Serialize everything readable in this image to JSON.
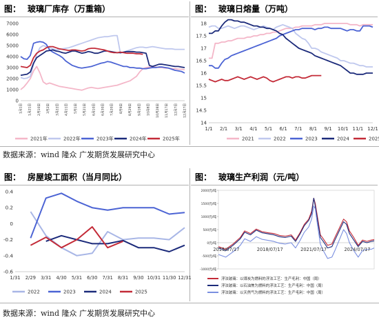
{
  "sources": {
    "top": "数据来源：wind 隆众 广发期货发展研究中心",
    "bottom": "数据来源：wind 隆众 广发期货发展研究中心"
  },
  "chart_data": [
    {
      "id": "inventory",
      "type": "line",
      "tag": "图：",
      "title": "玻璃厂库存（万重箱）",
      "ylim": [
        0,
        7000
      ],
      "yticks": [
        0,
        1000,
        2000,
        3000,
        4000,
        5000,
        6000,
        7000
      ],
      "xticks": [
        "1月1日",
        "1月21日",
        "2月10日",
        "3月2日",
        "3月22日",
        "4月11日",
        "5月1日",
        "5月21日",
        "6月10日",
        "6月30日",
        "7月20日",
        "8月9日",
        "8月29日",
        "9月18日",
        "10月8日",
        "10月28日",
        "11月17日",
        "12月7日",
        "12月27日"
      ],
      "n": 52,
      "series": [
        {
          "name": "2021年",
          "color": "#f4b6c8",
          "values": [
            1000,
            1250,
            1600,
            2000,
            2700,
            3100,
            2500,
            1700,
            1500,
            1600,
            1500,
            1400,
            1300,
            1250,
            1200,
            1150,
            1100,
            1050,
            1000,
            950,
            1050,
            1150,
            1200,
            1150,
            1100,
            1150,
            1200,
            1250,
            1300,
            1350,
            1400,
            1500,
            1600,
            1700,
            1800,
            2000,
            2200,
            2600,
            2900,
            3000,
            3050,
            3100,
            3050,
            3000,
            3000,
            2950,
            2950,
            2900,
            2900,
            2850,
            2850,
            2800
          ]
        },
        {
          "name": "2022年",
          "color": "#bfc8ee",
          "values": [
            2100,
            2000,
            2050,
            2200,
            3300,
            4200,
            4800,
            5000,
            4900,
            4800,
            4700,
            4600,
            4650,
            4700,
            4750,
            4800,
            4900,
            5000,
            5100,
            5200,
            5300,
            5400,
            5500,
            5600,
            5700,
            5750,
            5800,
            5800,
            5850,
            5900,
            5900,
            4300,
            4400,
            4500,
            4600,
            4700,
            4800,
            4850,
            4850,
            4800,
            4850,
            4900,
            4850,
            4800,
            4750,
            4700,
            4700,
            4700,
            4650,
            4650,
            4650,
            4650
          ]
        },
        {
          "name": "2023年",
          "color": "#4b63d4",
          "values": [
            4000,
            3800,
            3750,
            4100,
            5200,
            5300,
            5350,
            5300,
            5100,
            4600,
            4400,
            4250,
            4100,
            3900,
            3600,
            3400,
            3200,
            3100,
            3000,
            2950,
            3000,
            3050,
            3100,
            3200,
            3300,
            3400,
            3450,
            3550,
            3500,
            3400,
            3300,
            3200,
            3100,
            3100,
            3000,
            3000,
            2950,
            2950,
            2900,
            2900,
            2950,
            3000,
            3000,
            3050,
            3050,
            3000,
            2950,
            2850,
            2750,
            2700,
            2650,
            2500
          ]
        },
        {
          "name": "2024年",
          "color": "#1b2a7a",
          "values": [
            2300,
            2350,
            2400,
            2600,
            3400,
            3900,
            4100,
            4300,
            4500,
            4550,
            4600,
            4500,
            4450,
            4350,
            4300,
            4400,
            4500,
            4500,
            4400,
            4300,
            4350,
            4450,
            4400,
            4300,
            4300,
            4400,
            4500,
            4500,
            4450,
            4400,
            4350,
            4350,
            4400,
            4450,
            4450,
            4450,
            4400,
            4400,
            4350,
            4300,
            3200,
            3100,
            3200,
            3300,
            3300,
            3250,
            3200,
            3150,
            3100,
            3100,
            3050,
            3000
          ]
        },
        {
          "name": "2025年",
          "color": "#c32a37",
          "values": [
            3100,
            3050,
            3000,
            3200,
            3900,
            4300,
            4500,
            4600,
            4800,
            4900,
            4900,
            4800,
            4700,
            4650,
            4600,
            4550,
            4600,
            4600,
            4550,
            4500,
            4550,
            4700,
            4750,
            4750,
            4700,
            4650,
            4600,
            4500,
            4400,
            4350,
            4350,
            4400,
            4350,
            4300,
            4300,
            4300,
            4250,
            4250,
            4200
          ]
        }
      ]
    },
    {
      "id": "melt",
      "type": "line",
      "tag": "图：",
      "title": "玻璃日熔量（万吨）",
      "ylim": [
        14,
        18
      ],
      "yticks": [
        14,
        14.5,
        15,
        15.5,
        16,
        16.5,
        17,
        17.5,
        18
      ],
      "xticks": [
        "1/1",
        "2/1",
        "3/1",
        "4/1",
        "5/1",
        "6/1",
        "7/1",
        "8/1",
        "9/1",
        "10/1",
        "11/1",
        "12/1"
      ],
      "n": 52,
      "series": [
        {
          "name": "2021",
          "color": "#f4b6c8",
          "values": [
            16.6,
            16.6,
            17.2,
            17.2,
            17.25,
            17.25,
            17.3,
            17.3,
            17.35,
            17.4,
            17.4,
            17.4,
            17.45,
            17.45,
            17.5,
            17.5,
            17.55,
            17.55,
            17.6,
            17.6,
            17.65,
            17.65,
            17.7,
            17.75,
            17.8,
            17.8,
            17.8,
            17.85,
            17.85,
            17.9,
            17.9,
            17.9,
            17.9,
            17.95,
            17.95,
            17.95,
            18.0,
            18.0,
            18.0,
            18.0,
            18.0,
            18.0,
            18.0,
            18.0,
            17.95,
            17.95,
            17.95,
            17.9,
            17.95,
            17.95,
            17.95,
            17.95
          ]
        },
        {
          "name": "2022",
          "color": "#bfc8ee",
          "values": [
            17.85,
            17.9,
            17.9,
            17.8,
            17.8,
            17.85,
            17.9,
            17.85,
            17.8,
            17.85,
            17.9,
            17.9,
            17.85,
            17.8,
            17.75,
            17.8,
            17.85,
            17.9,
            17.85,
            17.8,
            17.75,
            17.85,
            17.9,
            17.95,
            17.9,
            17.85,
            17.8,
            17.6,
            17.5,
            17.4,
            17.35,
            17.2,
            17.0,
            17.0,
            16.95,
            16.85,
            16.8,
            16.75,
            16.7,
            16.65,
            16.6,
            16.5,
            16.5,
            16.45,
            16.4,
            16.4,
            16.35,
            16.3,
            16.3,
            16.25,
            16.25,
            16.25
          ]
        },
        {
          "name": "2023",
          "color": "#4b63d4",
          "values": [
            16.3,
            16.3,
            16.2,
            16.2,
            16.4,
            16.55,
            16.6,
            16.7,
            16.75,
            16.8,
            16.85,
            16.9,
            16.95,
            17.0,
            17.05,
            17.1,
            17.15,
            17.2,
            17.25,
            17.3,
            17.35,
            17.4,
            17.5,
            17.55,
            17.6,
            17.65,
            17.7,
            17.75,
            17.75,
            17.8,
            17.8,
            17.8,
            17.8,
            17.75,
            17.8,
            17.8,
            17.85,
            17.85,
            17.8,
            17.8,
            17.8,
            17.8,
            17.75,
            17.7,
            17.75,
            17.75,
            17.7,
            17.7,
            17.9,
            17.9,
            17.9,
            17.85
          ]
        },
        {
          "name": "2024",
          "color": "#1b2a7a",
          "values": [
            17.6,
            17.6,
            17.7,
            17.7,
            17.9,
            18.05,
            18.15,
            18.15,
            18.1,
            18.1,
            18.05,
            18.05,
            18.0,
            17.95,
            17.9,
            17.9,
            17.85,
            17.85,
            17.8,
            17.8,
            17.75,
            17.7,
            17.6,
            17.55,
            17.4,
            17.3,
            17.2,
            17.1,
            17.0,
            16.95,
            16.9,
            16.85,
            16.8,
            16.7,
            16.65,
            16.6,
            16.55,
            16.5,
            16.45,
            16.4,
            16.35,
            16.3,
            16.2,
            16.1,
            16.0,
            16.0,
            15.95,
            15.95,
            15.95,
            16.0,
            16.0,
            16.0
          ]
        },
        {
          "name": "2025",
          "color": "#c32a37",
          "values": [
            15.75,
            15.7,
            15.65,
            15.7,
            15.75,
            15.7,
            15.7,
            15.75,
            15.8,
            15.85,
            15.8,
            15.75,
            15.8,
            15.85,
            15.8,
            15.75,
            15.8,
            15.85,
            15.8,
            15.7,
            15.65,
            15.7,
            15.75,
            15.8,
            15.85,
            15.85,
            15.8,
            15.85,
            15.85,
            15.8,
            15.8,
            15.85,
            15.9,
            15.9,
            15.9,
            15.9
          ]
        }
      ]
    },
    {
      "id": "completion",
      "type": "line",
      "tag": "图：",
      "title": "房屋竣工面积（当月同比）",
      "ylim": [
        -0.6,
        0.4
      ],
      "yticks": [
        -0.6,
        -0.4,
        -0.2,
        0,
        0.2,
        0.4
      ],
      "ytick_labels": [
        "-0.6",
        "-0.4",
        "-0.2",
        "0",
        "0.2",
        "0.4"
      ],
      "xticks": [
        "1/31",
        "2/29",
        "3/31",
        "4/30",
        "5/31",
        "6/30",
        "7/31",
        "8/31",
        "9/30",
        "10/31",
        "11/30",
        "12/31"
      ],
      "series": [
        {
          "name": "2022",
          "color": "#a8b6e6",
          "values": [
            null,
            0.15,
            -0.15,
            -0.3,
            -0.4,
            -0.37,
            -0.1,
            -0.2,
            -0.18,
            -0.18,
            -0.2,
            -0.05
          ]
        },
        {
          "name": "2023",
          "color": "#4b63d4",
          "values": [
            null,
            -0.18,
            0.32,
            0.38,
            0.28,
            0.2,
            0.17,
            0.2,
            0.2,
            0.2,
            0.12,
            0.14
          ]
        },
        {
          "name": "2024",
          "color": "#1b2a7a",
          "values": [
            null,
            null,
            -0.22,
            -0.15,
            -0.2,
            -0.25,
            -0.25,
            -0.21,
            -0.3,
            -0.3,
            -0.35,
            -0.27
          ]
        },
        {
          "name": "2025",
          "color": "#c32a37",
          "values": [
            null,
            -0.27,
            -0.17,
            -0.3,
            -0.2,
            -0.04,
            -0.3,
            -0.22,
            null,
            null,
            null,
            null
          ]
        }
      ]
    },
    {
      "id": "profit",
      "type": "line",
      "tag": "图：",
      "title": "玻璃生产利润（元/吨）",
      "ylim": [
        -1000,
        2000
      ],
      "yticks": [
        -1000,
        -500,
        0,
        500,
        1000,
        1500,
        2000
      ],
      "ytick_labels": [
        "-1000元/吨",
        "-500元/吨",
        "0元/吨",
        "500元/吨",
        "1000元/吨",
        "1500元/吨",
        "2000元/吨"
      ],
      "xticks": [
        "2015/07/17",
        "2018/07/17",
        "2021/07/17",
        "2024/07/17"
      ],
      "x_range": [
        2015.0,
        2025.7
      ],
      "x_tick_pos": [
        2015.54,
        2018.54,
        2021.54,
        2024.54
      ],
      "series": [
        {
          "name": "浮法玻璃：以煤炭为燃料的浮法工艺：生产毛利：中国（周）",
          "color": "#c32a37",
          "x": [
            2015.0,
            2015.5,
            2016.0,
            2016.5,
            2016.8,
            2017.2,
            2017.6,
            2018.0,
            2018.4,
            2018.8,
            2019.2,
            2019.6,
            2020.0,
            2020.3,
            2020.6,
            2020.9,
            2021.2,
            2021.4,
            2021.55,
            2021.65,
            2021.8,
            2022.0,
            2022.2,
            2022.5,
            2022.8,
            2023.0,
            2023.3,
            2023.6,
            2023.8,
            2024.0,
            2024.3,
            2024.6,
            2024.9,
            2025.2,
            2025.5,
            2025.7
          ],
          "values": [
            -150,
            -250,
            -50,
            200,
            450,
            350,
            520,
            420,
            380,
            350,
            280,
            250,
            300,
            100,
            380,
            700,
            900,
            1200,
            1700,
            1500,
            1000,
            300,
            150,
            -100,
            -50,
            200,
            550,
            900,
            800,
            450,
            200,
            -100,
            100,
            50,
            100,
            120
          ]
        },
        {
          "name": "浮法玻璃：以石油焦为燃料的浮法工艺：生产毛利：中国（周）",
          "color": "#1b2a7a",
          "x": [
            2015.0,
            2015.5,
            2016.0,
            2016.5,
            2016.8,
            2017.2,
            2017.6,
            2018.0,
            2018.4,
            2018.8,
            2019.2,
            2019.6,
            2020.0,
            2020.3,
            2020.6,
            2020.9,
            2021.2,
            2021.4,
            2021.55,
            2021.65,
            2021.8,
            2022.0,
            2022.2,
            2022.5,
            2022.8,
            2023.0,
            2023.3,
            2023.6,
            2023.8,
            2024.0,
            2024.3,
            2024.6,
            2024.9,
            2025.2,
            2025.5,
            2025.7
          ],
          "values": [
            -200,
            -300,
            -100,
            150,
            400,
            300,
            480,
            380,
            340,
            300,
            230,
            200,
            250,
            50,
            330,
            650,
            850,
            1100,
            1700,
            1400,
            900,
            200,
            50,
            -200,
            -150,
            100,
            450,
            800,
            700,
            350,
            100,
            -150,
            50,
            0,
            50,
            70
          ]
        },
        {
          "name": "浮法玻璃：以天然气为燃料的浮法工艺：生产毛利：中国（周）",
          "color": "#7a8fe0",
          "x": [
            2015.0,
            2015.5,
            2016.0,
            2016.5,
            2016.8,
            2017.2,
            2017.6,
            2018.0,
            2018.4,
            2018.8,
            2019.2,
            2019.6,
            2020.0,
            2020.3,
            2020.6,
            2020.9,
            2021.2,
            2021.4,
            2021.55,
            2021.65,
            2021.8,
            2022.0,
            2022.2,
            2022.5,
            2022.8,
            2023.0,
            2023.3,
            2023.6,
            2023.8,
            2024.0,
            2024.3,
            2024.6,
            2024.9,
            2025.2,
            2025.5,
            2025.7
          ],
          "values": [
            -450,
            -550,
            -350,
            -100,
            150,
            50,
            230,
            130,
            90,
            50,
            -20,
            -50,
            0,
            -200,
            80,
            400,
            600,
            900,
            1400,
            1300,
            700,
            -50,
            -300,
            -600,
            -550,
            -300,
            100,
            500,
            350,
            0,
            -300,
            -550,
            -300,
            -250,
            -250,
            -200
          ]
        }
      ]
    }
  ]
}
